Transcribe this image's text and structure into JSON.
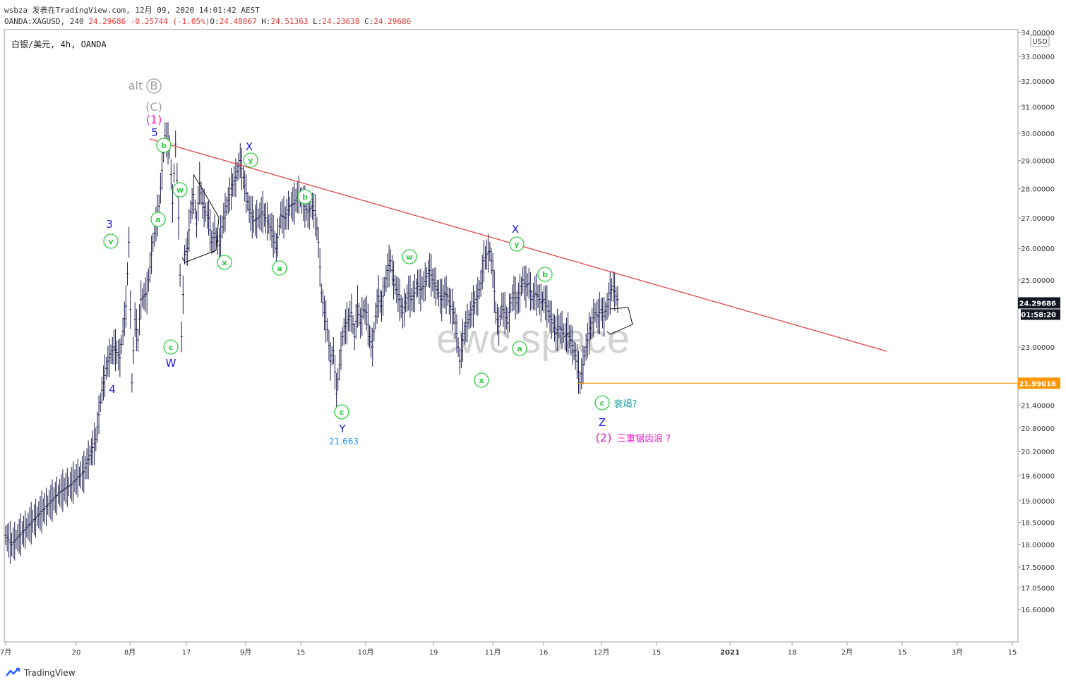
{
  "header": {
    "author": "wsbza",
    "published": "发表在TradingView.com, 12月 09, 2020 14:01:42 AEST",
    "symbol_line": "OANDA:XAGUSD, 240",
    "last": "24.29686",
    "change": "-0.25744 (-1.05%)",
    "o_label": "O:",
    "o": "24.48067",
    "h_label": "H:",
    "h": "24.51363",
    "l_label": "L:",
    "l": "24.23638",
    "c_label": "C:",
    "c": "24.29686"
  },
  "chart_title": "白银/美元, 4h, OANDA",
  "currency": "USD",
  "watermark": "ewc.space",
  "footer": "TradingView",
  "chart_data": {
    "type": "line",
    "series": [
      {
        "values": [
          [
            0,
            18.2
          ],
          [
            4,
            18.0
          ],
          [
            12,
            18.3
          ],
          [
            20,
            18.6
          ],
          [
            28,
            18.9
          ],
          [
            36,
            19.2
          ],
          [
            44,
            19.4
          ],
          [
            52,
            19.7
          ],
          [
            60,
            20.5
          ],
          [
            64,
            21.8
          ],
          [
            68,
            22.6
          ],
          [
            72,
            23.0
          ],
          [
            76,
            22.7
          ],
          [
            80,
            24.2
          ],
          [
            82,
            26.2
          ],
          [
            84,
            22.0
          ],
          [
            86,
            23.8
          ],
          [
            88,
            23.2
          ],
          [
            90,
            24.4
          ],
          [
            94,
            24.6
          ],
          [
            98,
            26.2
          ],
          [
            102,
            27.4
          ],
          [
            106,
            29.9
          ],
          [
            109,
            29.5
          ],
          [
            111,
            27.5
          ],
          [
            113,
            29.6
          ],
          [
            115,
            27.0
          ],
          [
            117,
            23.3
          ],
          [
            119,
            25.8
          ],
          [
            121,
            26.0
          ],
          [
            123,
            27.2
          ],
          [
            125,
            27.8
          ],
          [
            127,
            26.8
          ],
          [
            129,
            28.2
          ],
          [
            131,
            27.5
          ],
          [
            133,
            27.2
          ],
          [
            135,
            27.0
          ],
          [
            137,
            26.2
          ],
          [
            139,
            26.5
          ],
          [
            142,
            26.1
          ],
          [
            145,
            27.0
          ],
          [
            148,
            27.6
          ],
          [
            150,
            28.0
          ],
          [
            153,
            28.4
          ],
          [
            156,
            29.0
          ],
          [
            159,
            28.1
          ],
          [
            162,
            27.3
          ],
          [
            165,
            26.9
          ],
          [
            168,
            27.0
          ],
          [
            171,
            27.2
          ],
          [
            174,
            26.9
          ],
          [
            177,
            26.6
          ],
          [
            180,
            26.0
          ],
          [
            183,
            27.1
          ],
          [
            186,
            27.0
          ],
          [
            189,
            27.4
          ],
          [
            192,
            27.5
          ],
          [
            195,
            27.8
          ],
          [
            198,
            27.5
          ],
          [
            201,
            27.2
          ],
          [
            204,
            27.4
          ],
          [
            206,
            27.1
          ],
          [
            208,
            26.2
          ],
          [
            210,
            24.6
          ],
          [
            212,
            24.0
          ],
          [
            214,
            23.5
          ],
          [
            216,
            22.6
          ],
          [
            218,
            22.9
          ],
          [
            220,
            21.7
          ],
          [
            222,
            22.5
          ],
          [
            224,
            23.3
          ],
          [
            226,
            23.6
          ],
          [
            228,
            23.8
          ],
          [
            230,
            24.0
          ],
          [
            232,
            23.3
          ],
          [
            234,
            24.2
          ],
          [
            236,
            23.7
          ],
          [
            238,
            24.1
          ],
          [
            240,
            24.0
          ],
          [
            242,
            23.3
          ],
          [
            244,
            23.0
          ],
          [
            246,
            23.9
          ],
          [
            248,
            24.5
          ],
          [
            250,
            24.2
          ],
          [
            252,
            24.8
          ],
          [
            254,
            25.3
          ],
          [
            256,
            25.6
          ],
          [
            258,
            25.0
          ],
          [
            260,
            24.7
          ],
          [
            262,
            24.4
          ],
          [
            264,
            24.0
          ],
          [
            266,
            24.3
          ],
          [
            268,
            24.6
          ],
          [
            270,
            24.4
          ],
          [
            272,
            24.6
          ],
          [
            274,
            24.9
          ],
          [
            276,
            24.7
          ],
          [
            278,
            24.8
          ],
          [
            280,
            25.1
          ],
          [
            282,
            25.3
          ],
          [
            284,
            25.0
          ],
          [
            286,
            24.8
          ],
          [
            288,
            24.6
          ],
          [
            290,
            24.4
          ],
          [
            292,
            24.6
          ],
          [
            294,
            24.5
          ],
          [
            296,
            24.2
          ],
          [
            298,
            24.0
          ],
          [
            300,
            23.4
          ],
          [
            302,
            22.6
          ],
          [
            304,
            23.2
          ],
          [
            306,
            23.6
          ],
          [
            308,
            23.8
          ],
          [
            310,
            24.1
          ],
          [
            312,
            24.3
          ],
          [
            314,
            24.5
          ],
          [
            316,
            24.9
          ],
          [
            318,
            25.6
          ],
          [
            320,
            25.8
          ],
          [
            322,
            25.9
          ],
          [
            324,
            25.3
          ],
          [
            326,
            24.0
          ],
          [
            328,
            23.6
          ],
          [
            330,
            24.2
          ],
          [
            332,
            24.0
          ],
          [
            334,
            23.7
          ],
          [
            336,
            24.3
          ],
          [
            338,
            24.6
          ],
          [
            340,
            24.3
          ],
          [
            342,
            24.6
          ],
          [
            344,
            25.0
          ],
          [
            346,
            24.8
          ],
          [
            348,
            24.9
          ],
          [
            350,
            24.4
          ],
          [
            352,
            24.6
          ],
          [
            354,
            24.5
          ],
          [
            356,
            24.3
          ],
          [
            358,
            24.4
          ],
          [
            360,
            24.2
          ],
          [
            362,
            23.9
          ],
          [
            364,
            23.7
          ],
          [
            366,
            23.4
          ],
          [
            368,
            23.6
          ],
          [
            370,
            23.5
          ],
          [
            372,
            23.3
          ],
          [
            374,
            23.4
          ],
          [
            376,
            23.2
          ],
          [
            378,
            22.9
          ],
          [
            380,
            22.6
          ],
          [
            382,
            22.0
          ],
          [
            384,
            22.5
          ],
          [
            386,
            23.0
          ],
          [
            388,
            23.4
          ],
          [
            390,
            23.7
          ],
          [
            392,
            24.0
          ],
          [
            394,
            23.9
          ],
          [
            396,
            24.1
          ],
          [
            398,
            23.9
          ],
          [
            400,
            24.2
          ],
          [
            402,
            24.6
          ],
          [
            404,
            24.8
          ],
          [
            406,
            24.5
          ],
          [
            408,
            24.3
          ]
        ]
      }
    ],
    "ylim": [
      16.3,
      34.0
    ],
    "log_scale": true,
    "price_ticks": [
      "34.00000",
      "33.00000",
      "32.00000",
      "31.00000",
      "30.00000",
      "29.00000",
      "28.00000",
      "27.00000",
      "26.00000",
      "25.00000",
      "23.00000",
      "21.40000",
      "20.80000",
      "20.20000",
      "19.60000",
      "19.00000",
      "18.50000",
      "18.00000",
      "17.50000",
      "17.05000",
      "16.60000"
    ],
    "time_ticks": [
      "7月",
      "20",
      "8月",
      "17",
      "9月",
      "15",
      "10月",
      "19",
      "11月",
      "16",
      "12月",
      "15",
      "2021",
      "18",
      "2月",
      "15",
      "3月",
      "15"
    ],
    "last_price_label": "24.29686",
    "countdown": "01:58:20",
    "support_label": "21.99016",
    "annotations": [
      {
        "text": "alt",
        "color": "#9e9e9e"
      },
      {
        "text": "B",
        "color": "#9e9e9e"
      },
      {
        "text": "(C)",
        "color": "#9e9e9e"
      },
      {
        "text": "(1)",
        "color": "#e91ec9"
      },
      {
        "text": "5",
        "color": "#1a1ae6"
      },
      {
        "text": "3",
        "color": "#1a1ae6"
      },
      {
        "text": "4",
        "color": "#1a1ae6"
      },
      {
        "text": "W",
        "color": "#1a1ae6"
      },
      {
        "text": "X",
        "color": "#1a1ae6"
      },
      {
        "text": "Y",
        "color": "#1a1ae6"
      },
      {
        "text": "X",
        "color": "#1a1ae6"
      },
      {
        "text": "Z",
        "color": "#1a1ae6"
      },
      {
        "text": "21.663",
        "color": "#2196f3"
      },
      {
        "text": "(2)",
        "color": "#e91ec9"
      },
      {
        "text": "三重锯齿浪 ?",
        "color": "#e91ec9"
      },
      {
        "text": "衰竭?",
        "color": "#1a9e9e"
      }
    ],
    "wave_circles": [
      "v",
      "b",
      "a",
      "c",
      "w",
      "x",
      "y",
      "a",
      "b",
      "c",
      "w",
      "x",
      "y",
      "b",
      "a",
      "c"
    ],
    "colors": {
      "candles": "#1b1b4f",
      "trendline": "#e53935",
      "support": "#ff9800",
      "circle": "#2ecc40",
      "axis_text": "#333333"
    }
  }
}
